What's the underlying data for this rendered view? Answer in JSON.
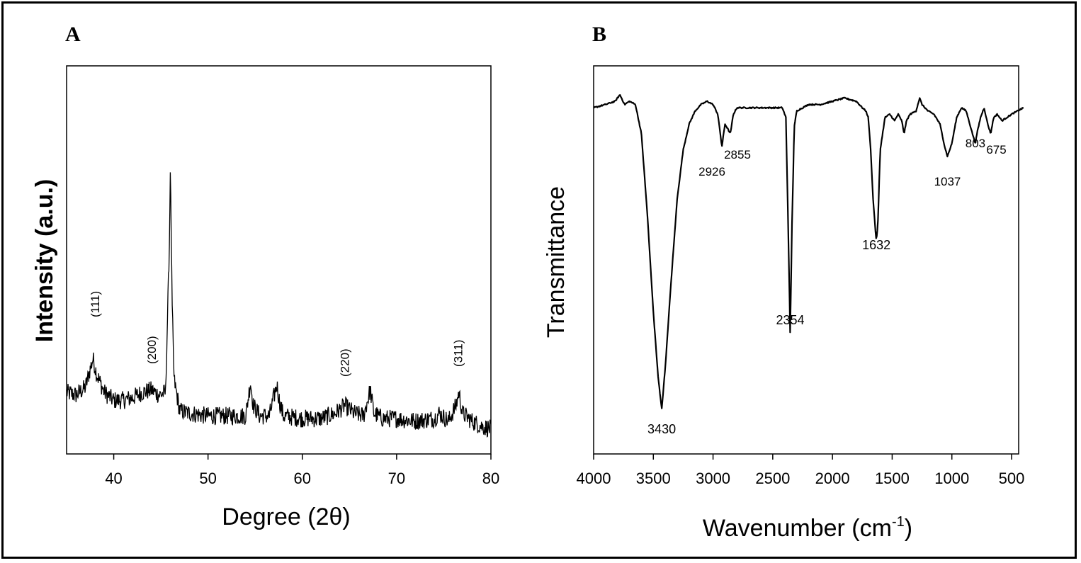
{
  "chart_data": [
    {
      "panel": "A",
      "type": "line",
      "xlabel": "Degree (2θ)",
      "ylabel": "Intensity (a.u.)",
      "xlim": [
        35,
        80
      ],
      "xticks": [
        40,
        50,
        60,
        70,
        80
      ],
      "y_axis_ticks_shown": false,
      "annotations": [
        {
          "label": "(111)",
          "x": 38.0
        },
        {
          "label": "(200)",
          "x": 44.0
        },
        {
          "label": "(220)",
          "x": 64.5
        },
        {
          "label": "(311)",
          "x": 76.5
        }
      ],
      "series": [
        {
          "x": [
            35,
            36,
            37,
            37.5,
            37.8,
            38.2,
            39,
            40,
            41,
            42,
            43,
            44,
            44.8,
            45.5,
            45.9,
            46.0,
            46.2,
            46.4,
            47,
            48,
            50,
            52,
            54,
            54.5,
            54.8,
            55.5,
            56.5,
            57.3,
            57.6,
            58,
            60,
            62,
            63.5,
            64.5,
            65.5,
            66.5,
            67.2,
            67.6,
            68.5,
            70,
            72,
            74,
            74.5,
            75.5,
            76.3,
            76.6,
            77,
            78,
            79,
            80
          ],
          "y": [
            0.13,
            0.12,
            0.15,
            0.22,
            0.26,
            0.2,
            0.13,
            0.1,
            0.1,
            0.11,
            0.13,
            0.14,
            0.12,
            0.13,
            0.7,
            1.0,
            0.45,
            0.18,
            0.06,
            0.05,
            0.04,
            0.04,
            0.04,
            0.17,
            0.08,
            0.04,
            0.04,
            0.16,
            0.09,
            0.04,
            0.03,
            0.03,
            0.05,
            0.08,
            0.05,
            0.04,
            0.14,
            0.05,
            0.03,
            0.03,
            0.02,
            0.03,
            0.05,
            0.02,
            0.08,
            0.13,
            0.05,
            0.02,
            0.0,
            -0.01
          ]
        }
      ]
    },
    {
      "panel": "B",
      "type": "line",
      "xlabel": "Wavenumber (cm⁻¹)",
      "xlabel_base": "Wavenumber (cm",
      "xlabel_sup": "-1",
      "xlabel_end": ")",
      "ylabel": "Transmittance",
      "xlim": [
        4000,
        400
      ],
      "xticks": [
        4000,
        3500,
        3000,
        2500,
        2000,
        1500,
        1000,
        500
      ],
      "y_axis_ticks_shown": false,
      "annotations": [
        {
          "label": "3430",
          "x": 3430
        },
        {
          "label": "2926",
          "x": 2926
        },
        {
          "label": "2855",
          "x": 2855
        },
        {
          "label": "2354",
          "x": 2354
        },
        {
          "label": "1632",
          "x": 1632
        },
        {
          "label": "1037",
          "x": 1037
        },
        {
          "label": "803",
          "x": 803
        },
        {
          "label": "675",
          "x": 675
        }
      ],
      "series": [
        {
          "x": [
            4000,
            3900,
            3820,
            3780,
            3740,
            3700,
            3650,
            3600,
            3550,
            3500,
            3460,
            3430,
            3400,
            3350,
            3300,
            3250,
            3200,
            3150,
            3100,
            3050,
            3000,
            2960,
            2926,
            2900,
            2870,
            2855,
            2830,
            2800,
            2700,
            2600,
            2500,
            2420,
            2390,
            2370,
            2354,
            2340,
            2320,
            2300,
            2250,
            2200,
            2100,
            2000,
            1900,
            1800,
            1750,
            1720,
            1700,
            1680,
            1660,
            1640,
            1632,
            1620,
            1600,
            1560,
            1520,
            1480,
            1450,
            1420,
            1400,
            1380,
            1350,
            1300,
            1270,
            1250,
            1200,
            1150,
            1100,
            1060,
            1037,
            1000,
            960,
            920,
            880,
            850,
            820,
            803,
            790,
            760,
            730,
            700,
            675,
            650,
            620,
            580,
            540,
            500,
            450,
            400
          ],
          "y": [
            0.98,
            0.99,
            1.0,
            1.02,
            0.99,
            1.0,
            0.99,
            0.9,
            0.65,
            0.35,
            0.15,
            0.05,
            0.18,
            0.45,
            0.7,
            0.85,
            0.93,
            0.97,
            0.99,
            1.0,
            0.99,
            0.96,
            0.86,
            0.93,
            0.91,
            0.9,
            0.96,
            0.98,
            0.98,
            0.98,
            0.98,
            0.98,
            0.95,
            0.6,
            0.28,
            0.6,
            0.92,
            0.97,
            0.98,
            0.99,
            0.99,
            1.0,
            1.01,
            1.0,
            0.98,
            0.97,
            0.95,
            0.85,
            0.7,
            0.6,
            0.57,
            0.62,
            0.85,
            0.95,
            0.96,
            0.94,
            0.96,
            0.94,
            0.9,
            0.94,
            0.96,
            0.97,
            1.01,
            0.99,
            0.97,
            0.96,
            0.93,
            0.86,
            0.83,
            0.87,
            0.95,
            0.98,
            0.97,
            0.93,
            0.89,
            0.87,
            0.9,
            0.95,
            0.98,
            0.93,
            0.9,
            0.95,
            0.96,
            0.94,
            0.95,
            0.96,
            0.97,
            0.98
          ]
        }
      ]
    }
  ]
}
